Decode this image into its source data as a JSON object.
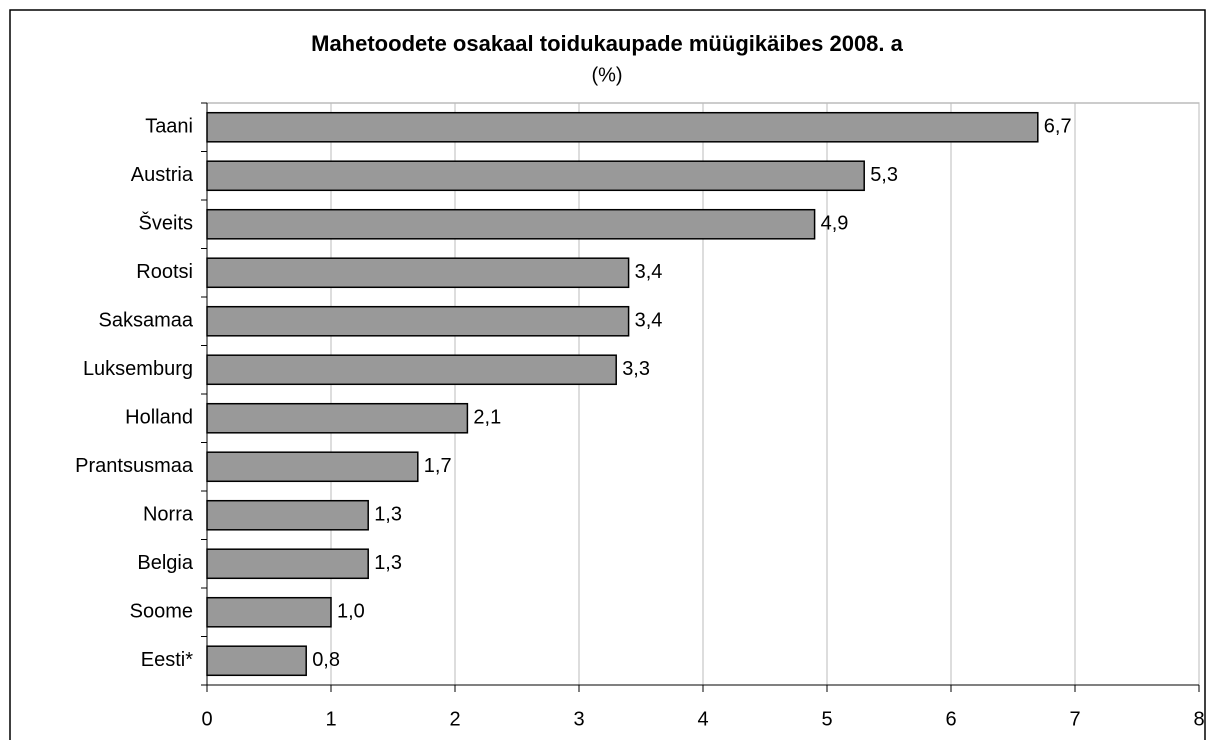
{
  "chart_data": {
    "type": "hbar",
    "title": "Mahetoodete osakaal toidukaupade müügikäibes 2008. a",
    "subtitle": "(%)",
    "categories": [
      "Taani",
      "Austria",
      "Šveits",
      "Rootsi",
      "Saksamaa",
      "Luksemburg",
      "Holland",
      "Prantsusmaa",
      "Norra",
      "Belgia",
      "Soome",
      "Eesti*"
    ],
    "values": [
      6.7,
      5.3,
      4.9,
      3.4,
      3.4,
      3.3,
      2.1,
      1.7,
      1.3,
      1.3,
      1.0,
      0.8
    ],
    "value_labels": [
      "6,7",
      "5,3",
      "4,9",
      "3,4",
      "3,4",
      "3,3",
      "2,1",
      "1,7",
      "1,3",
      "1,3",
      "1,0",
      "0,8"
    ],
    "color": "#999999",
    "xlim": [
      0,
      8
    ],
    "xticks": [
      0,
      1,
      2,
      3,
      4,
      5,
      6,
      7,
      8
    ],
    "grid": true
  }
}
